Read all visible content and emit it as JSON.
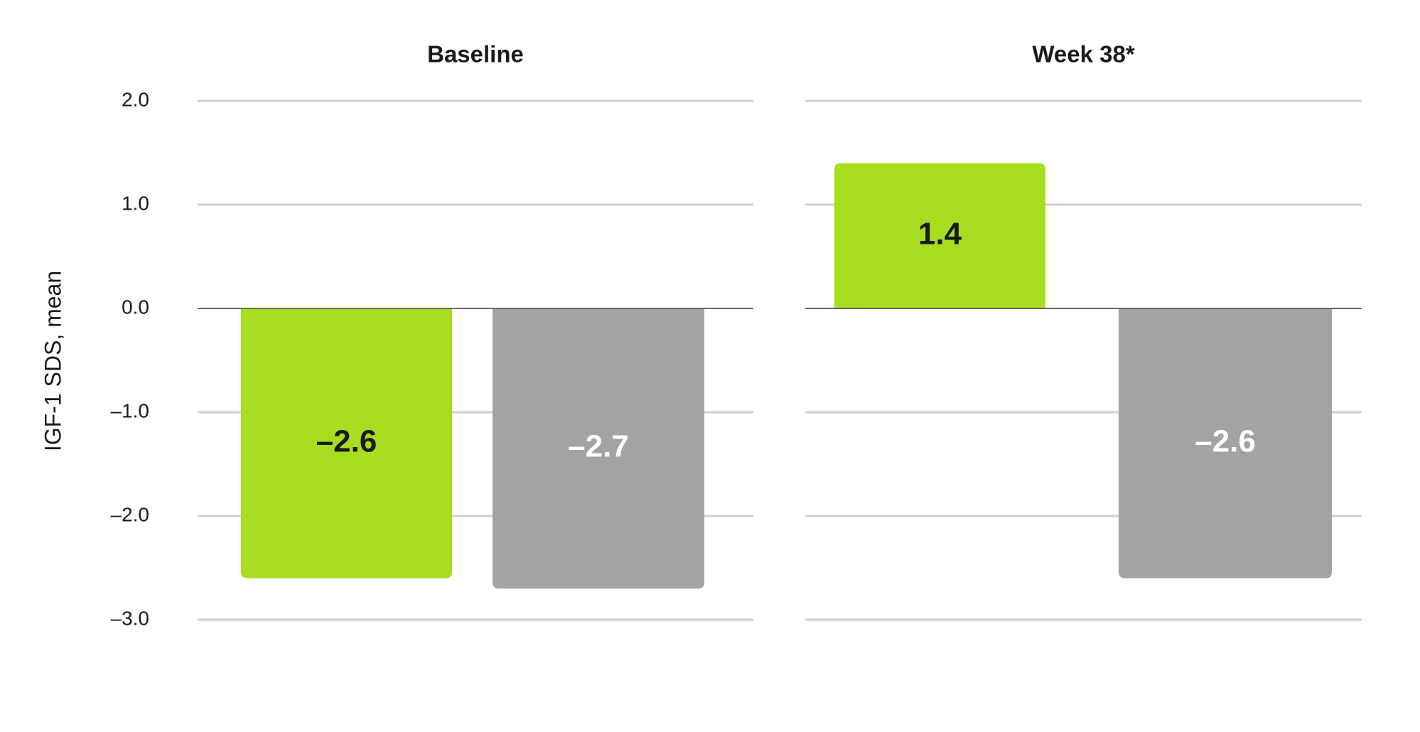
{
  "chart_data": {
    "type": "bar",
    "ylabel": "IGF-1 SDS, mean",
    "ylim": [
      -3,
      2
    ],
    "yticks": [
      {
        "value": 2,
        "label": "2.0"
      },
      {
        "value": 1,
        "label": "1.0"
      },
      {
        "value": 0,
        "label": "0.0"
      },
      {
        "value": -1,
        "label": "–1.0"
      },
      {
        "value": -2,
        "label": "–2.0"
      },
      {
        "value": -3,
        "label": "–3.0"
      }
    ],
    "grid": true,
    "colors": [
      "#a8dc1e",
      "#a3a3a3"
    ],
    "label_colors": [
      "#1a1a1a",
      "#ffffff"
    ],
    "panels": [
      {
        "title": "Baseline",
        "values": [
          -2.6,
          -2.7
        ],
        "value_labels": [
          "–2.6",
          "–2.7"
        ]
      },
      {
        "title": "Week 38*",
        "values": [
          1.4,
          -2.6
        ],
        "value_labels": [
          "1.4",
          "–2.6"
        ]
      }
    ]
  }
}
